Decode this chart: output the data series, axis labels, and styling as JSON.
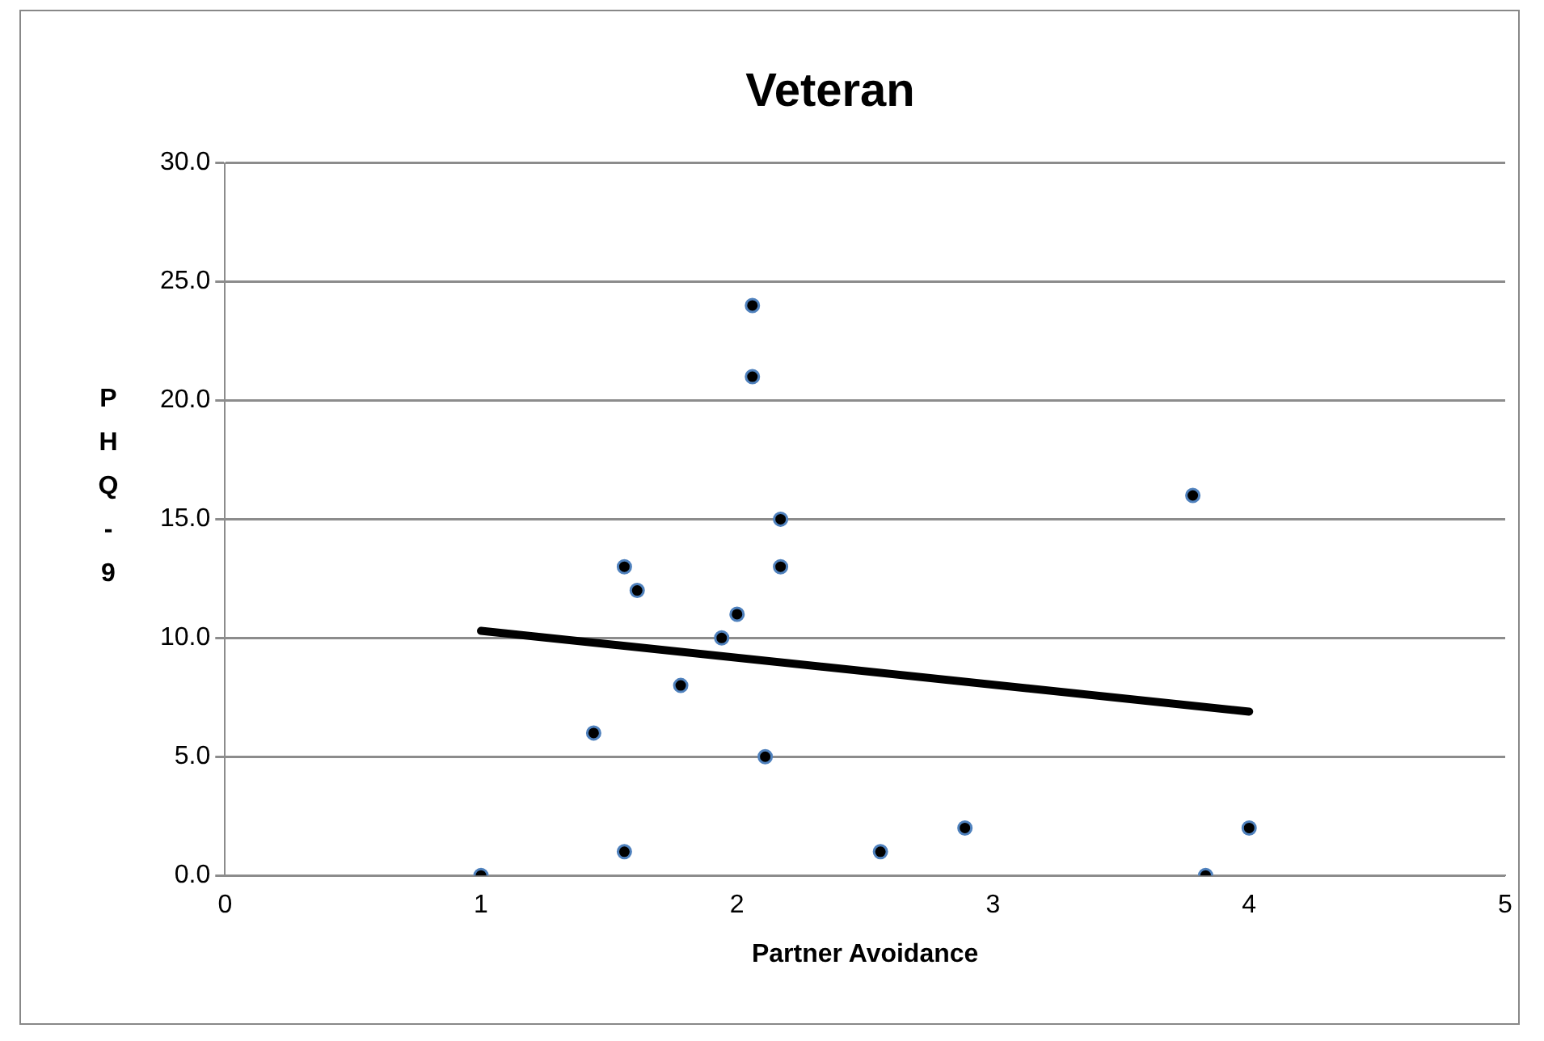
{
  "chart_data": {
    "type": "scatter",
    "title": "Veteran",
    "xlabel": "Partner Avoidance",
    "ylabel": "PHQ-9",
    "xlim": [
      0,
      5
    ],
    "xticks": [
      0,
      1,
      2,
      3,
      4,
      5
    ],
    "ylim": [
      0,
      30
    ],
    "yticks": [
      {
        "value": 0,
        "label": "0.0"
      },
      {
        "value": 5,
        "label": "5.0"
      },
      {
        "value": 10,
        "label": "10.0"
      },
      {
        "value": 15,
        "label": "15.0"
      },
      {
        "value": 20,
        "label": "20.0"
      },
      {
        "value": 25,
        "label": "25.0"
      },
      {
        "value": 30,
        "label": "30.0"
      }
    ],
    "grid": "y",
    "legend": false,
    "marker": "circle",
    "series": [
      {
        "color": "#000000",
        "x": [
          1.0,
          1.56,
          1.44,
          1.56,
          1.61,
          1.78,
          1.94,
          2.0,
          2.06,
          2.06,
          2.17,
          2.17,
          2.11,
          2.56,
          2.89,
          3.78,
          3.83,
          4.0
        ],
        "values": [
          0,
          1,
          6,
          13,
          12,
          8,
          10,
          11,
          24,
          21,
          15,
          13,
          5,
          1,
          2,
          16,
          0,
          2
        ]
      },
      {
        "type": "line",
        "color": "#000000",
        "x": [
          1,
          4
        ],
        "values": [
          10.3,
          6.9
        ],
        "marker": "none"
      }
    ]
  }
}
